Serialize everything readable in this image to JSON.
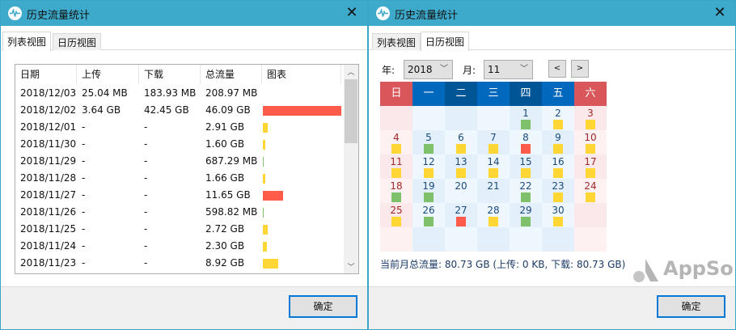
{
  "left_window": {
    "title": "历史流量统计",
    "close_icon": "close-icon",
    "app_icon": "waveform-icon",
    "tabs": [
      {
        "label": "列表视图",
        "active": true
      },
      {
        "label": "日历视图",
        "active": false
      }
    ],
    "columns": [
      "日期",
      "上传",
      "下载",
      "总流量",
      "图表"
    ],
    "rows": [
      {
        "date": "2018/12/03",
        "up": "25.04 MB",
        "down": "183.93 MB",
        "total": "208.97 MB",
        "bar_gb": 0,
        "bar_color": "none"
      },
      {
        "date": "2018/12/02",
        "up": "3.64 GB",
        "down": "42.45 GB",
        "total": "46.09 GB",
        "bar_gb": 46.09,
        "bar_color": "#ff5b4a"
      },
      {
        "date": "2018/12/01",
        "up": "-",
        "down": "-",
        "total": "2.91 GB",
        "bar_gb": 2.91,
        "bar_color": "#ffd633"
      },
      {
        "date": "2018/11/30",
        "up": "-",
        "down": "-",
        "total": "1.60 GB",
        "bar_gb": 1.6,
        "bar_color": "#ffd633"
      },
      {
        "date": "2018/11/29",
        "up": "-",
        "down": "-",
        "total": "687.29 MB",
        "bar_gb": 0.67,
        "bar_color": "#7fc06a"
      },
      {
        "date": "2018/11/28",
        "up": "-",
        "down": "-",
        "total": "1.66 GB",
        "bar_gb": 1.66,
        "bar_color": "#ffd633"
      },
      {
        "date": "2018/11/27",
        "up": "-",
        "down": "-",
        "total": "11.65 GB",
        "bar_gb": 11.65,
        "bar_color": "#ff5b4a"
      },
      {
        "date": "2018/11/26",
        "up": "-",
        "down": "-",
        "total": "598.82 MB",
        "bar_gb": 0.58,
        "bar_color": "#7fc06a"
      },
      {
        "date": "2018/11/25",
        "up": "-",
        "down": "-",
        "total": "2.72 GB",
        "bar_gb": 2.72,
        "bar_color": "#ffd633"
      },
      {
        "date": "2018/11/24",
        "up": "-",
        "down": "-",
        "total": "2.30 GB",
        "bar_gb": 2.3,
        "bar_color": "#ffd633"
      },
      {
        "date": "2018/11/23",
        "up": "-",
        "down": "-",
        "total": "8.92 GB",
        "bar_gb": 8.92,
        "bar_color": "#ffd633"
      }
    ],
    "ok_label": "确定"
  },
  "right_window": {
    "title": "历史流量统计",
    "close_icon": "close-icon",
    "app_icon": "waveform-icon",
    "tabs": [
      {
        "label": "列表视图",
        "active": false
      },
      {
        "label": "日历视图",
        "active": true
      }
    ],
    "year_label": "年:",
    "year_value": "2018",
    "month_label": "月:",
    "month_value": "11",
    "prev_label": "<",
    "next_label": ">",
    "weekdays": [
      {
        "label": "日",
        "color": "#d9575a"
      },
      {
        "label": "一",
        "color": "#0069be"
      },
      {
        "label": "二",
        "color": "#005596"
      },
      {
        "label": "三",
        "color": "#0069be"
      },
      {
        "label": "四",
        "color": "#005596"
      },
      {
        "label": "五",
        "color": "#0069be"
      },
      {
        "label": "六",
        "color": "#d9575a"
      }
    ],
    "first_weekday": 4,
    "days": [
      {
        "d": "1",
        "c": "#7fc06a"
      },
      {
        "d": "2",
        "c": "#ffd633"
      },
      {
        "d": "3",
        "c": "#ffd633"
      },
      {
        "d": "4",
        "c": "#ffd633"
      },
      {
        "d": "5",
        "c": "#7fc06a"
      },
      {
        "d": "6",
        "c": "#ffd633"
      },
      {
        "d": "7",
        "c": "#ffd633"
      },
      {
        "d": "8",
        "c": "#ff5b4a"
      },
      {
        "d": "9",
        "c": "#ffd633"
      },
      {
        "d": "10",
        "c": "#ffd633"
      },
      {
        "d": "11",
        "c": "#ffd633"
      },
      {
        "d": "12",
        "c": "#ffd633"
      },
      {
        "d": "13",
        "c": "#ffd633"
      },
      {
        "d": "14",
        "c": "#ffd633"
      },
      {
        "d": "15",
        "c": "#ffd633"
      },
      {
        "d": "16",
        "c": "#ffd633"
      },
      {
        "d": "17",
        "c": "#ffd633"
      },
      {
        "d": "18",
        "c": "#7fc06a"
      },
      {
        "d": "19",
        "c": "#7fc06a"
      },
      {
        "d": "20",
        "c": ""
      },
      {
        "d": "21",
        "c": ""
      },
      {
        "d": "22",
        "c": "#7fc06a"
      },
      {
        "d": "23",
        "c": "#ffd633"
      },
      {
        "d": "24",
        "c": "#ffd633"
      },
      {
        "d": "25",
        "c": "#ffd633"
      },
      {
        "d": "26",
        "c": "#7fc06a"
      },
      {
        "d": "27",
        "c": "#ff5b4a"
      },
      {
        "d": "28",
        "c": "#ffd633"
      },
      {
        "d": "29",
        "c": "#7fc06a"
      },
      {
        "d": "30",
        "c": "#ffd633"
      }
    ],
    "summary": "当前月总流量: 80.73 GB (上传: 0 KB, 下载: 80.73 GB)",
    "watermark": "AppSo",
    "ok_label": "确定"
  },
  "colors": {
    "titlebar": "#3eaacb",
    "high": "#ff5b4a",
    "medium": "#ffd633",
    "low": "#7fc06a"
  }
}
